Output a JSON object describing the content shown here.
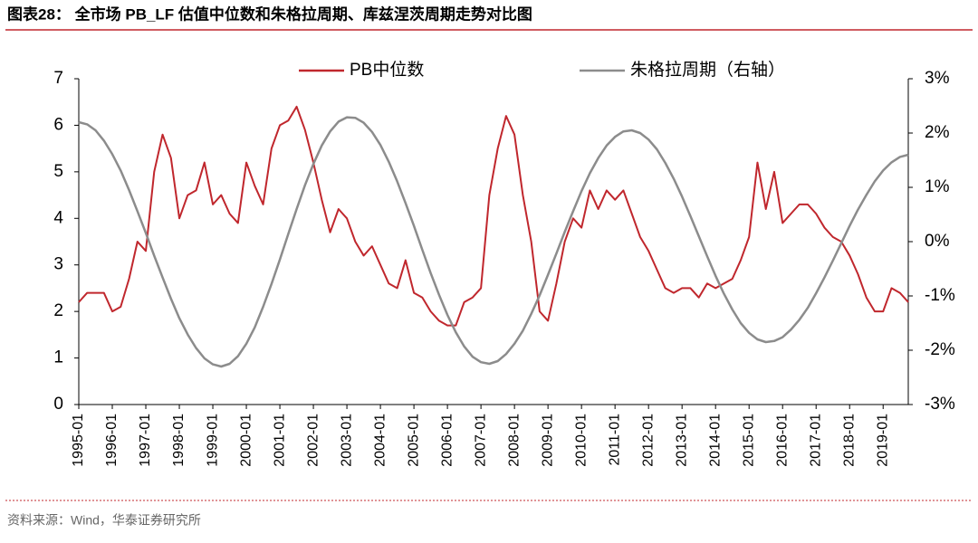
{
  "header": {
    "title": "图表28：  全市场 PB_LF 估值中位数和朱格拉周期、库兹涅茨周期走势对比图"
  },
  "chart_data": {
    "type": "line",
    "categories": [
      "1995-01",
      null,
      null,
      null,
      "1996-01",
      null,
      null,
      null,
      "1997-01",
      null,
      null,
      null,
      "1998-01",
      null,
      null,
      null,
      "1999-01",
      null,
      null,
      null,
      "2000-01",
      null,
      null,
      null,
      "2001-01",
      null,
      null,
      null,
      "2002-01",
      null,
      null,
      null,
      "2003-01",
      null,
      null,
      null,
      "2004-01",
      null,
      null,
      null,
      "2005-01",
      null,
      null,
      null,
      "2006-01",
      null,
      null,
      null,
      "2007-01",
      null,
      null,
      null,
      "2008-01",
      null,
      null,
      null,
      "2009-01",
      null,
      null,
      null,
      "2010-01",
      null,
      null,
      null,
      "2011-01",
      null,
      null,
      null,
      "2012-01",
      null,
      null,
      null,
      "2013-01",
      null,
      null,
      null,
      "2014-01",
      null,
      null,
      null,
      "2015-01",
      null,
      null,
      null,
      "2016-01",
      null,
      null,
      null,
      "2017-01",
      null,
      null,
      null,
      "2018-01",
      null,
      null,
      null,
      "2019-01",
      null,
      null,
      null
    ],
    "series": [
      {
        "name": "PB中位数",
        "color": "#c0272d",
        "axis": "y",
        "values": [
          2.2,
          2.4,
          2.4,
          2.4,
          2.0,
          2.1,
          2.7,
          3.5,
          3.3,
          5.0,
          5.8,
          5.3,
          4.0,
          4.5,
          4.6,
          5.2,
          4.3,
          4.5,
          4.1,
          3.9,
          5.2,
          4.7,
          4.3,
          5.5,
          6.0,
          6.1,
          6.4,
          5.9,
          5.2,
          4.4,
          3.7,
          4.2,
          4.0,
          3.5,
          3.2,
          3.4,
          3.0,
          2.6,
          2.5,
          3.1,
          2.4,
          2.3,
          2.0,
          1.8,
          1.7,
          1.7,
          2.2,
          2.3,
          2.5,
          4.5,
          5.5,
          6.2,
          5.8,
          4.5,
          3.5,
          2.0,
          1.8,
          2.6,
          3.5,
          4.0,
          3.8,
          4.6,
          4.2,
          4.6,
          4.4,
          4.6,
          4.1,
          3.6,
          3.3,
          2.9,
          2.5,
          2.4,
          2.5,
          2.5,
          2.3,
          2.6,
          2.5,
          2.6,
          2.7,
          3.1,
          3.6,
          5.2,
          4.2,
          5.0,
          3.9,
          4.1,
          4.3,
          4.3,
          4.1,
          3.8,
          3.6,
          3.5,
          3.2,
          2.8,
          2.3,
          2.0,
          2.0,
          2.5,
          2.4,
          2.2
        ]
      },
      {
        "name": "朱格拉周期（右轴）",
        "color": "#8c8c8c",
        "axis": "y2",
        "values": [
          2.2,
          2.16,
          2.05,
          1.86,
          1.61,
          1.31,
          0.95,
          0.56,
          0.16,
          -0.26,
          -0.66,
          -1.05,
          -1.41,
          -1.71,
          -1.96,
          -2.15,
          -2.26,
          -2.3,
          -2.25,
          -2.11,
          -1.88,
          -1.58,
          -1.2,
          -0.78,
          -0.33,
          0.14,
          0.6,
          1.04,
          1.43,
          1.77,
          2.03,
          2.21,
          2.29,
          2.28,
          2.19,
          2.02,
          1.78,
          1.47,
          1.11,
          0.71,
          0.29,
          -0.15,
          -0.58,
          -0.98,
          -1.35,
          -1.67,
          -1.93,
          -2.12,
          -2.22,
          -2.25,
          -2.2,
          -2.07,
          -1.88,
          -1.64,
          -1.33,
          -0.99,
          -0.61,
          -0.22,
          0.18,
          0.56,
          0.93,
          1.26,
          1.54,
          1.77,
          1.93,
          2.03,
          2.05,
          2.0,
          1.88,
          1.7,
          1.45,
          1.16,
          0.83,
          0.47,
          0.1,
          -0.27,
          -0.63,
          -0.96,
          -1.25,
          -1.5,
          -1.68,
          -1.8,
          -1.85,
          -1.83,
          -1.76,
          -1.62,
          -1.44,
          -1.22,
          -0.95,
          -0.66,
          -0.35,
          -0.03,
          0.29,
          0.59,
          0.86,
          1.11,
          1.31,
          1.46,
          1.56,
          1.6
        ]
      }
    ],
    "ylim": [
      0,
      7
    ],
    "yticks": [
      0,
      1,
      2,
      3,
      4,
      5,
      6,
      7
    ],
    "y2lim": [
      -3,
      3
    ],
    "y2ticks": [
      {
        "value": -3,
        "label": "-3%"
      },
      {
        "value": -2,
        "label": "-2%"
      },
      {
        "value": -1,
        "label": "-1%"
      },
      {
        "value": 0,
        "label": "0%"
      },
      {
        "value": 1,
        "label": "1%"
      },
      {
        "value": 2,
        "label": "2%"
      },
      {
        "value": 3,
        "label": "3%"
      }
    ],
    "grid": false,
    "legend": "top"
  },
  "footer": {
    "source": "资料来源：Wind，华泰证券研究所"
  }
}
